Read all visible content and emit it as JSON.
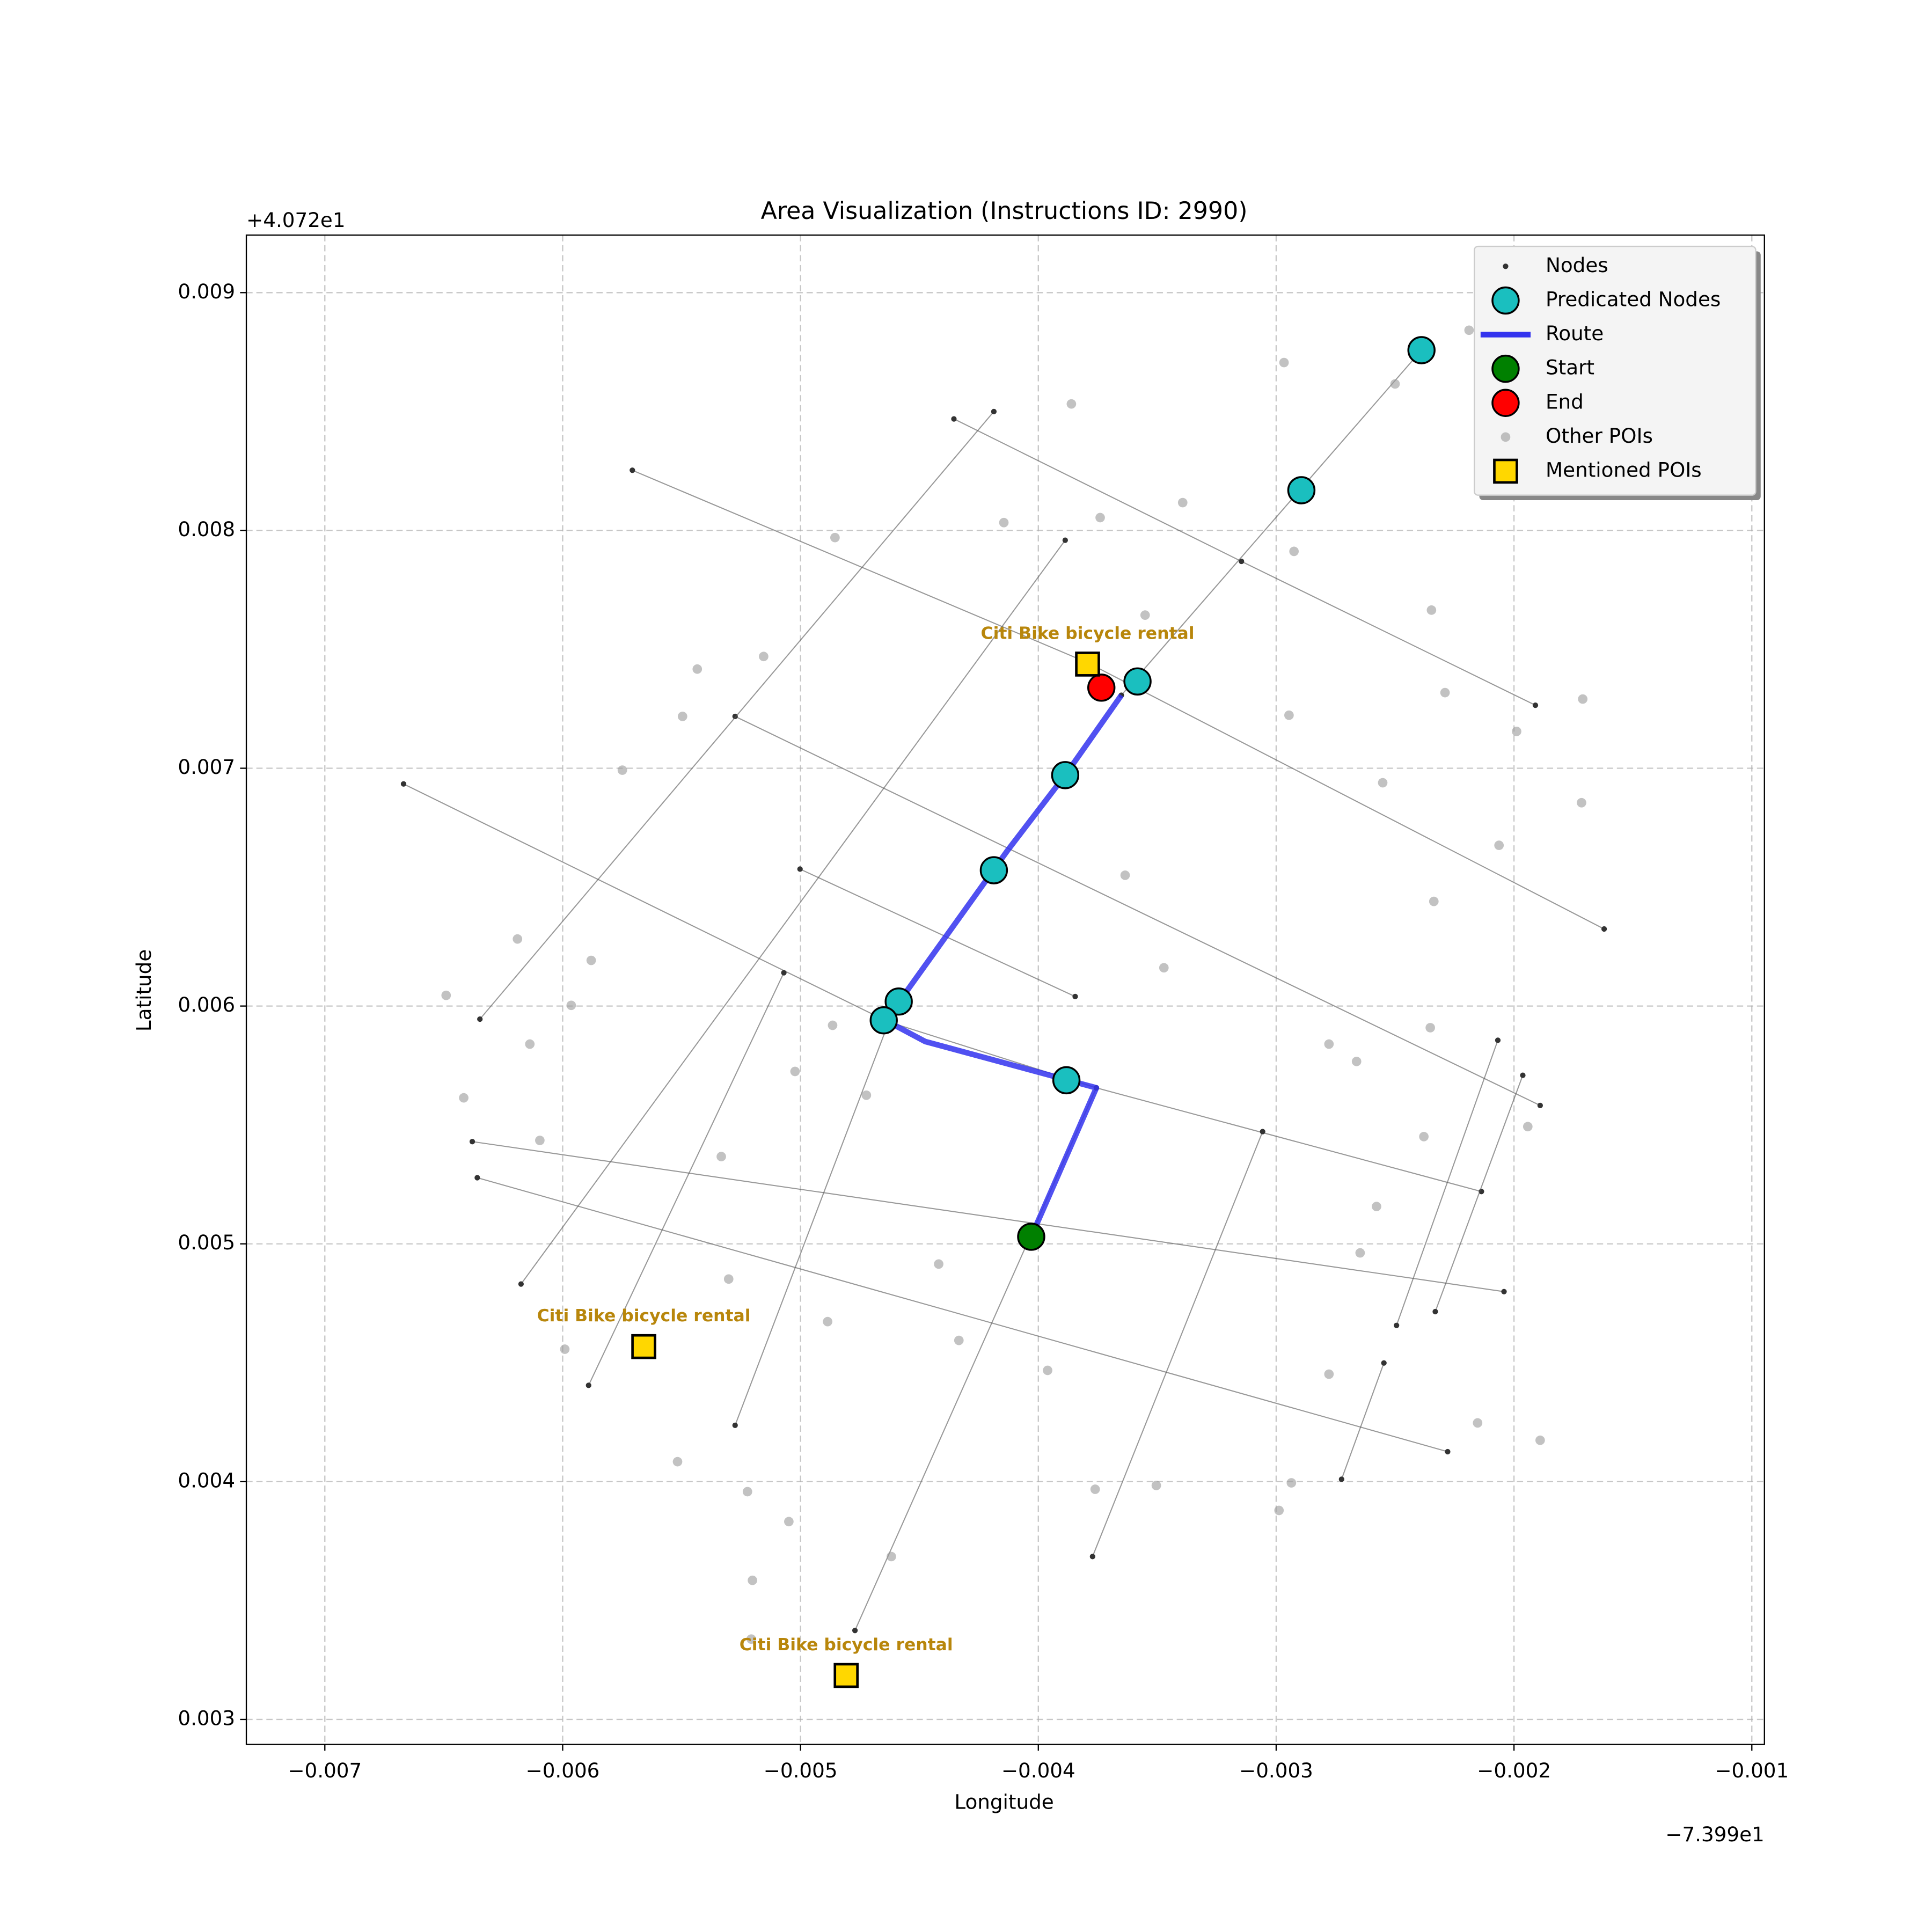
{
  "chart_data": {
    "type": "scatter",
    "title": "Area Visualization (Instructions ID: 2990)",
    "xlabel": "Longitude",
    "ylabel": "Latitude",
    "x_offset_label": "−7.399e1",
    "y_offset_label": "+4.072e1",
    "xlim": [
      -0.00733,
      -0.000947
    ],
    "ylim": [
      0.002895,
      0.009242
    ],
    "xticks": [
      {
        "value": -0.007,
        "label": "−0.007"
      },
      {
        "value": -0.006,
        "label": "−0.006"
      },
      {
        "value": -0.005,
        "label": "−0.005"
      },
      {
        "value": -0.004,
        "label": "−0.004"
      },
      {
        "value": -0.003,
        "label": "−0.003"
      },
      {
        "value": -0.002,
        "label": "−0.002"
      },
      {
        "value": -0.001,
        "label": "−0.001"
      }
    ],
    "yticks": [
      0.003,
      0.004,
      0.005,
      0.006,
      0.007,
      0.008,
      0.009
    ],
    "grid": true,
    "legend": "upper right",
    "series": [
      {
        "name": "Nodes",
        "color": "#333333",
        "segments": [
          {
            "x": [
              -0.006669,
              -0.004634,
              -0.003756,
              -0.002137
            ],
            "y": [
              0.006934,
              0.005935,
              0.005656,
              0.00522
            ]
          },
          {
            "x": [
              -0.005707,
              -0.003793,
              -0.001621
            ],
            "y": [
              0.008253,
              0.007444,
              0.006324
            ]
          },
          {
            "x": [
              -0.004355,
              -0.003146,
              -0.00191
            ],
            "y": [
              0.008469,
              0.00787,
              0.007265
            ]
          },
          {
            "x": [
              -0.005275,
              -0.00189
            ],
            "y": [
              0.007218,
              0.005582
            ]
          },
          {
            "x": [
              -0.005002,
              -0.003845
            ],
            "y": [
              0.006576,
              0.00604
            ]
          },
          {
            "x": [
              -0.00638,
              -0.002042
            ],
            "y": [
              0.00543,
              0.004799
            ]
          },
          {
            "x": [
              -0.006359,
              -0.002279
            ],
            "y": [
              0.005278,
              0.004126
            ]
          },
          {
            "x": [
              -0.006348,
              -0.004187
            ],
            "y": [
              0.005945,
              0.0085
            ]
          },
          {
            "x": [
              -0.006175,
              -0.003887
            ],
            "y": [
              0.004831,
              0.007959
            ]
          },
          {
            "x": [
              -0.005891,
              -0.00507
            ],
            "y": [
              0.004405,
              0.00614
            ]
          },
          {
            "x": [
              -0.005275,
              -0.004634
            ],
            "y": [
              0.004237,
              0.005919
            ]
          },
          {
            "x": [
              -0.004771,
              -0.003756
            ],
            "y": [
              0.003374,
              0.005656
            ]
          },
          {
            "x": [
              -0.003772,
              -0.003057
            ],
            "y": [
              0.003685,
              0.005472
            ]
          },
          {
            "x": [
              -0.003651,
              -0.002389
            ],
            "y": [
              0.007307,
              0.008758
            ]
          },
          {
            "x": [
              -0.002494,
              -0.002068
            ],
            "y": [
              0.004657,
              0.005856
            ]
          },
          {
            "x": [
              -0.002331,
              -0.001963
            ],
            "y": [
              0.004715,
              0.005709
            ]
          },
          {
            "x": [
              -0.002725,
              -0.002547
            ],
            "y": [
              0.00401,
              0.004499
            ]
          }
        ]
      },
      {
        "name": "Predicated Nodes",
        "color": "#1abfbf",
        "x": [
          -0.002389,
          -0.002894,
          -0.003583,
          -0.003887,
          -0.004187,
          -0.004587,
          -0.00465,
          -0.003882
        ],
        "y": [
          0.008758,
          0.008169,
          0.007365,
          0.006971,
          0.006571,
          0.006019,
          0.00594,
          0.005688
        ]
      },
      {
        "name": "Route",
        "color": "#3333ee",
        "x": [
          -0.00403,
          -0.003756,
          -0.004476,
          -0.004634,
          -0.004581,
          -0.004129,
          -0.003887,
          -0.003651
        ],
        "y": [
          0.00503,
          0.005656,
          0.005851,
          0.005935,
          0.006024,
          0.006655,
          0.006971,
          0.007307
        ]
      },
      {
        "name": "Start",
        "color": "#008000",
        "x": [
          -0.00403
        ],
        "y": [
          0.00503
        ]
      },
      {
        "name": "End",
        "color": "#ff0000",
        "x": [
          -0.003735
        ],
        "y": [
          0.007339
        ]
      },
      {
        "name": "Other POIs",
        "color": "#999999",
        "x": [
          -0.003861,
          -0.002967,
          -0.002189,
          -0.0025,
          -0.003393,
          -0.00374,
          -0.004145,
          -0.004855,
          -0.002925,
          -0.002347,
          -0.003551,
          -0.005155,
          -0.005434,
          -0.00229,
          -0.001711,
          -0.002946,
          -0.001989,
          -0.005496,
          -0.005749,
          -0.002552,
          -0.001716,
          -0.002063,
          -0.003635,
          -0.002337,
          -0.00619,
          -0.00588,
          -0.003472,
          -0.00649,
          -0.005964,
          -0.006138,
          -0.002352,
          -0.002778,
          -0.002662,
          -0.004865,
          -0.006416,
          -0.005023,
          -0.004723,
          -0.001942,
          -0.002379,
          -0.006096,
          -0.005333,
          -0.002578,
          -0.002647,
          -0.004419,
          -0.005302,
          -0.004886,
          -0.004334,
          -0.003961,
          -0.005991,
          -0.002778,
          -0.002153,
          -0.00189,
          -0.005517,
          -0.005223,
          -0.005049,
          -0.003761,
          -0.003504,
          -0.002936,
          -0.002988,
          -0.004618,
          -0.005202,
          -0.005207
        ],
        "y": [
          0.008532,
          0.008706,
          0.008842,
          0.008616,
          0.008117,
          0.008054,
          0.008033,
          0.00797,
          0.007912,
          0.007665,
          0.007644,
          0.00747,
          0.007417,
          0.007318,
          0.007291,
          0.007223,
          0.007155,
          0.007218,
          0.006992,
          0.006939,
          0.006855,
          0.006676,
          0.00655,
          0.00644,
          0.006282,
          0.006192,
          0.006161,
          0.006045,
          0.006003,
          0.00584,
          0.005909,
          0.00584,
          0.005767,
          0.005919,
          0.005614,
          0.005725,
          0.005625,
          0.005493,
          0.005451,
          0.005435,
          0.005367,
          0.005157,
          0.004962,
          0.004915,
          0.004852,
          0.004673,
          0.004594,
          0.004468,
          0.004557,
          0.004452,
          0.004247,
          0.004174,
          0.004084,
          0.003958,
          0.003832,
          0.003968,
          0.003984,
          0.003995,
          0.003879,
          0.003685,
          0.003585,
          0.003338
        ]
      },
      {
        "name": "Mentioned POIs",
        "color": "#ffd700",
        "x": [
          -0.003793,
          -0.005659,
          -0.004808
        ],
        "y": [
          0.007438,
          0.004568,
          0.003185
        ],
        "labels": [
          "Citi Bike bicycle rental",
          "Citi Bike bicycle rental",
          "Citi Bike bicycle rental"
        ],
        "label_color": "#b8860b"
      }
    ]
  }
}
